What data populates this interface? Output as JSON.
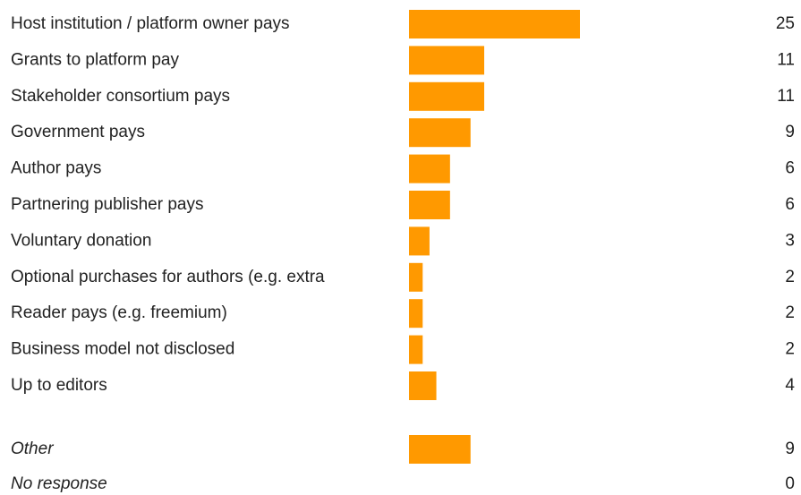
{
  "chart_data": [
    {
      "type": "bar",
      "color": "#ff9900",
      "categories": [
        "Host institution / platform owner pays",
        "Grants to platform pay",
        "Stakeholder consortium pays",
        "Government pays",
        "Author pays",
        "Partnering publisher pays",
        "Voluntary donation",
        "Optional purchases for authors (e.g. extra",
        "Reader pays (e.g. freemium)",
        "Business model not disclosed",
        "Up to editors"
      ],
      "values": [
        25,
        11,
        11,
        9,
        6,
        6,
        3,
        2,
        2,
        2,
        4
      ]
    },
    {
      "type": "bar",
      "color": "#ff9900",
      "categories": [
        "Other",
        "No response"
      ],
      "values": [
        9,
        0
      ]
    }
  ]
}
